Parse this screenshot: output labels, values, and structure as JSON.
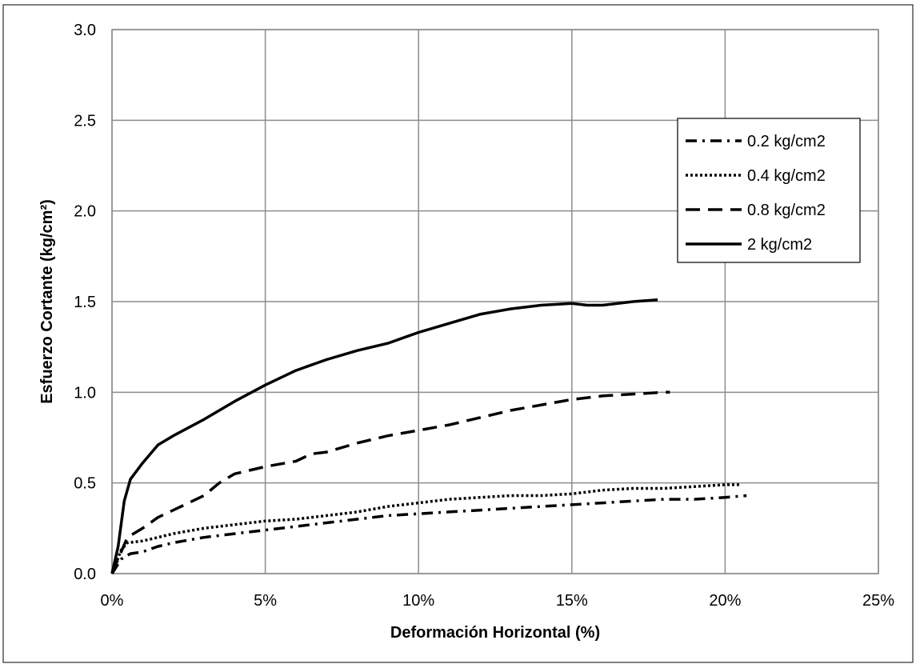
{
  "chart_data": {
    "type": "line",
    "title": "",
    "xlabel": "Deformación Horizontal (%)",
    "ylabel": "Esfuerzo Cortante (kg/cm²)",
    "xlim": [
      0,
      0.25
    ],
    "ylim": [
      0,
      3.0
    ],
    "x_ticks": [
      0,
      0.05,
      0.1,
      0.15,
      0.2,
      0.25
    ],
    "x_tick_labels": [
      "0%",
      "5%",
      "10%",
      "15%",
      "20%",
      "25%"
    ],
    "y_ticks": [
      0,
      0.5,
      1.0,
      1.5,
      2.0,
      2.5,
      3.0
    ],
    "y_tick_labels": [
      "0.0",
      "0.5",
      "1.0",
      "1.5",
      "2.0",
      "2.5",
      "3.0"
    ],
    "grid": true,
    "legend_position": "top-right",
    "series": [
      {
        "name": "0.2 kg/cm2",
        "dash": "dash-dot",
        "color": "#000000",
        "points": [
          [
            0,
            0
          ],
          [
            0.003,
            0.08
          ],
          [
            0.006,
            0.11
          ],
          [
            0.01,
            0.12
          ],
          [
            0.015,
            0.15
          ],
          [
            0.02,
            0.17
          ],
          [
            0.03,
            0.2
          ],
          [
            0.04,
            0.22
          ],
          [
            0.05,
            0.24
          ],
          [
            0.06,
            0.26
          ],
          [
            0.07,
            0.28
          ],
          [
            0.08,
            0.3
          ],
          [
            0.09,
            0.32
          ],
          [
            0.1,
            0.33
          ],
          [
            0.11,
            0.34
          ],
          [
            0.12,
            0.35
          ],
          [
            0.13,
            0.36
          ],
          [
            0.14,
            0.37
          ],
          [
            0.15,
            0.38
          ],
          [
            0.16,
            0.39
          ],
          [
            0.17,
            0.4
          ],
          [
            0.18,
            0.41
          ],
          [
            0.19,
            0.41
          ],
          [
            0.2,
            0.42
          ],
          [
            0.207,
            0.43
          ]
        ]
      },
      {
        "name": "0.4 kg/cm2",
        "dash": "dotted",
        "color": "#000000",
        "points": [
          [
            0,
            0
          ],
          [
            0.003,
            0.13
          ],
          [
            0.005,
            0.17
          ],
          [
            0.01,
            0.18
          ],
          [
            0.015,
            0.2
          ],
          [
            0.02,
            0.22
          ],
          [
            0.03,
            0.25
          ],
          [
            0.04,
            0.27
          ],
          [
            0.05,
            0.29
          ],
          [
            0.06,
            0.3
          ],
          [
            0.07,
            0.32
          ],
          [
            0.08,
            0.34
          ],
          [
            0.09,
            0.37
          ],
          [
            0.1,
            0.39
          ],
          [
            0.11,
            0.41
          ],
          [
            0.12,
            0.42
          ],
          [
            0.13,
            0.43
          ],
          [
            0.14,
            0.43
          ],
          [
            0.15,
            0.44
          ],
          [
            0.155,
            0.45
          ],
          [
            0.16,
            0.46
          ],
          [
            0.17,
            0.47
          ],
          [
            0.18,
            0.47
          ],
          [
            0.19,
            0.48
          ],
          [
            0.2,
            0.49
          ],
          [
            0.205,
            0.49
          ]
        ]
      },
      {
        "name": "0.8 kg/cm2",
        "dash": "long-dash",
        "color": "#000000",
        "points": [
          [
            0,
            0
          ],
          [
            0.005,
            0.2
          ],
          [
            0.01,
            0.25
          ],
          [
            0.015,
            0.31
          ],
          [
            0.02,
            0.35
          ],
          [
            0.025,
            0.39
          ],
          [
            0.03,
            0.43
          ],
          [
            0.035,
            0.5
          ],
          [
            0.04,
            0.55
          ],
          [
            0.05,
            0.59
          ],
          [
            0.06,
            0.62
          ],
          [
            0.065,
            0.66
          ],
          [
            0.07,
            0.67
          ],
          [
            0.08,
            0.72
          ],
          [
            0.09,
            0.76
          ],
          [
            0.1,
            0.79
          ],
          [
            0.11,
            0.82
          ],
          [
            0.12,
            0.86
          ],
          [
            0.13,
            0.9
          ],
          [
            0.14,
            0.93
          ],
          [
            0.15,
            0.96
          ],
          [
            0.16,
            0.98
          ],
          [
            0.17,
            0.99
          ],
          [
            0.18,
            1.0
          ],
          [
            0.182,
            1.0
          ]
        ]
      },
      {
        "name": "2 kg/cm2",
        "dash": "solid",
        "color": "#000000",
        "points": [
          [
            0,
            0
          ],
          [
            0.002,
            0.15
          ],
          [
            0.004,
            0.4
          ],
          [
            0.006,
            0.52
          ],
          [
            0.01,
            0.61
          ],
          [
            0.015,
            0.71
          ],
          [
            0.02,
            0.76
          ],
          [
            0.03,
            0.85
          ],
          [
            0.04,
            0.95
          ],
          [
            0.05,
            1.04
          ],
          [
            0.06,
            1.12
          ],
          [
            0.07,
            1.18
          ],
          [
            0.08,
            1.23
          ],
          [
            0.09,
            1.27
          ],
          [
            0.1,
            1.33
          ],
          [
            0.11,
            1.38
          ],
          [
            0.12,
            1.43
          ],
          [
            0.13,
            1.46
          ],
          [
            0.14,
            1.48
          ],
          [
            0.15,
            1.49
          ],
          [
            0.155,
            1.48
          ],
          [
            0.16,
            1.48
          ],
          [
            0.17,
            1.5
          ],
          [
            0.178,
            1.51
          ]
        ]
      }
    ]
  }
}
